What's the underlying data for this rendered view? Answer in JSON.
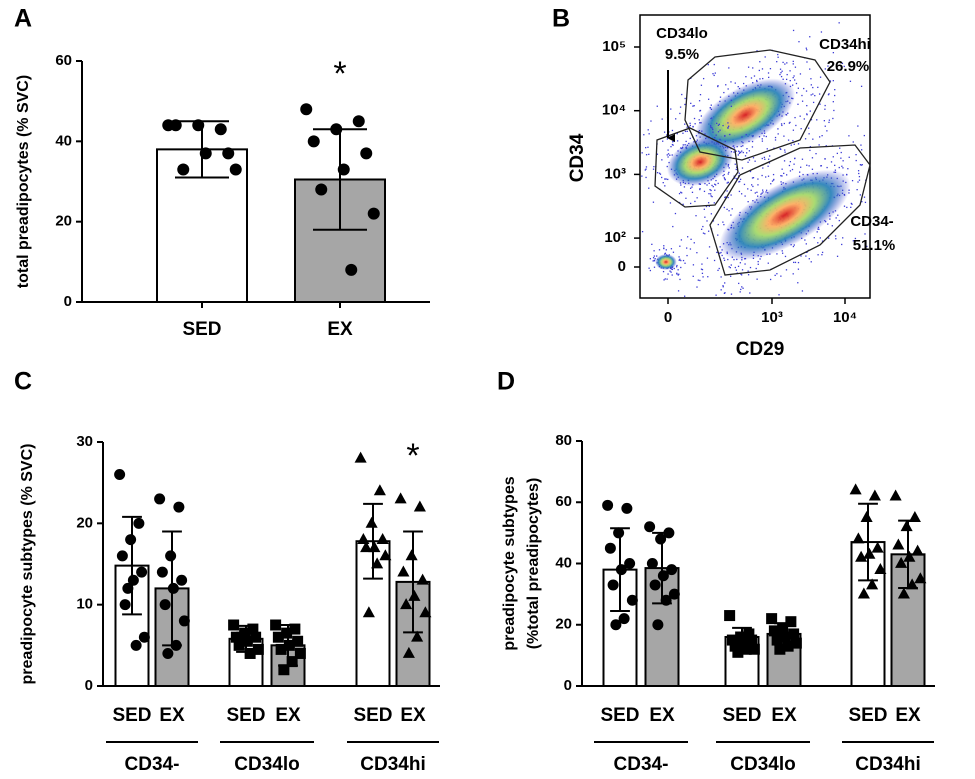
{
  "chart_data": [
    {
      "type": "bar",
      "label": "A",
      "ylabel": [
        "total preadipocytes (% SVC)"
      ],
      "categories": [
        "SED",
        "EX"
      ],
      "values": [
        38,
        30.5
      ],
      "errors": [
        7,
        12.5
      ],
      "points": [
        [
          44,
          43,
          44,
          44,
          37,
          37,
          33,
          33
        ],
        [
          48,
          45,
          43,
          40,
          37,
          33,
          28,
          22,
          8
        ]
      ],
      "marker": "circle",
      "bar_colors": [
        "#ffffff",
        "#a6a6a6"
      ],
      "ylim": [
        0,
        60
      ],
      "yticks": [
        0,
        20,
        40,
        60
      ],
      "annotation": "*"
    },
    {
      "type": "density",
      "label": "B",
      "xlabel": "CD29",
      "ylabel": [
        "CD34"
      ],
      "log_scale": true,
      "xticks": [
        0,
        {
          "value": 1000,
          "label": "10³"
        },
        {
          "value": 10000,
          "label": "10⁴"
        }
      ],
      "yticks": [
        {
          "value": 100000,
          "label": "10⁵"
        },
        {
          "value": 10000,
          "label": "10⁴"
        },
        {
          "value": 1000,
          "label": "10³"
        },
        {
          "value": 100,
          "label": "10²"
        },
        0
      ],
      "gates": {
        "names": [
          "CD34lo",
          "CD34hi",
          "CD34-"
        ],
        "values": [
          9.5,
          26.9,
          51.1
        ],
        "value_labels": [
          "9.5%",
          "26.9%",
          "51.1%"
        ]
      }
    },
    {
      "type": "bar",
      "label": "C",
      "ylabel": [
        "preadipocyte subtypes (% SVC)"
      ],
      "groups": [
        "CD34-",
        "CD34lo",
        "CD34hi"
      ],
      "group_markers": [
        "circle",
        "square",
        "triangle"
      ],
      "categories": [
        "SED",
        "EX",
        "SED",
        "EX",
        "SED",
        "EX"
      ],
      "values": [
        14.8,
        12,
        5.8,
        5,
        17.8,
        12.8
      ],
      "errors": [
        6,
        7,
        1.6,
        2.5,
        4.6,
        6.2
      ],
      "points": [
        [
          26,
          20,
          18,
          16,
          14,
          13,
          10,
          6,
          5,
          12
        ],
        [
          23,
          22,
          16,
          14,
          13,
          12,
          10,
          8,
          5,
          4
        ],
        [
          7.5,
          7,
          6.5,
          6,
          6,
          5.5,
          5,
          4.5,
          4,
          6
        ],
        [
          7.5,
          7,
          6.5,
          6,
          5.5,
          5,
          4.5,
          4,
          3,
          2
        ],
        [
          28,
          24,
          20,
          18,
          18,
          17,
          17,
          16,
          15,
          9
        ],
        [
          23,
          22,
          16,
          14,
          13,
          11,
          10,
          9,
          6,
          4
        ]
      ],
      "bar_colors": [
        "#ffffff",
        "#a6a6a6"
      ],
      "ylim": [
        0,
        30
      ],
      "yticks": [
        0,
        10,
        20,
        30
      ],
      "annotation": "*"
    },
    {
      "type": "bar",
      "label": "D",
      "ylabel": [
        "preadipocyte subtypes",
        "(%total preadipocytes)"
      ],
      "groups": [
        "CD34-",
        "CD34lo",
        "CD34hi"
      ],
      "group_markers": [
        "circle",
        "square",
        "triangle"
      ],
      "categories": [
        "SED",
        "EX",
        "SED",
        "EX",
        "SED",
        "EX"
      ],
      "values": [
        38,
        38.5,
        16,
        17,
        47,
        43
      ],
      "errors": [
        13.5,
        11.5,
        3,
        3.5,
        12.5,
        11
      ],
      "points": [
        [
          59,
          58,
          50,
          45,
          40,
          38,
          33,
          28,
          22,
          20
        ],
        [
          52,
          50,
          48,
          40,
          38,
          36,
          33,
          30,
          28,
          20
        ],
        [
          23,
          17,
          16,
          15,
          15,
          14,
          13,
          12,
          12,
          11
        ],
        [
          22,
          21,
          19,
          18,
          17,
          16,
          15,
          14,
          13,
          12
        ],
        [
          64,
          62,
          55,
          48,
          45,
          43,
          42,
          38,
          33,
          30
        ],
        [
          62,
          55,
          52,
          46,
          44,
          42,
          40,
          35,
          33,
          30
        ]
      ],
      "bar_colors": [
        "#ffffff",
        "#a6a6a6"
      ],
      "ylim": [
        0,
        80
      ],
      "yticks": [
        0,
        20,
        40,
        60,
        80
      ]
    }
  ]
}
